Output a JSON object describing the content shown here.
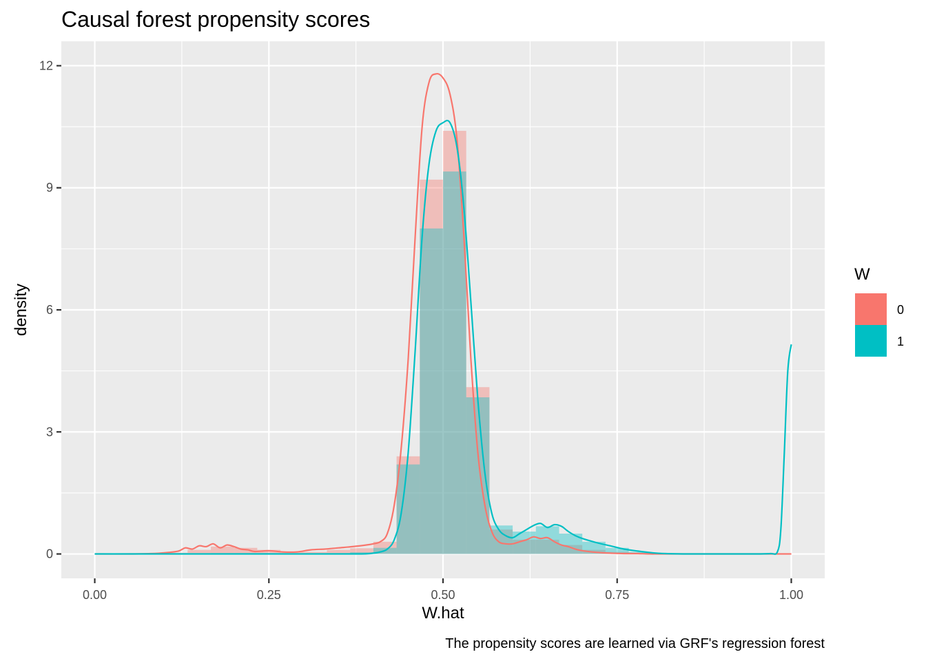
{
  "chart_data": {
    "type": "histogram+density",
    "title": "Causal forest propensity scores",
    "xlabel": "W.hat",
    "ylabel": "density",
    "caption": "The propensity scores are learned via GRF's regression forest",
    "xlim": [
      -0.048,
      1.048
    ],
    "ylim": [
      -0.6,
      12.6
    ],
    "x_ticks": [
      0,
      0.25,
      0.5,
      0.75,
      1
    ],
    "x_tick_labels": [
      "0.00",
      "0.25",
      "0.50",
      "0.75",
      "1.00"
    ],
    "y_ticks": [
      0,
      3,
      6,
      9,
      12
    ],
    "y_tick_labels": [
      "0",
      "3",
      "6",
      "9",
      "12"
    ],
    "grid": true,
    "legend": {
      "title": "W",
      "position": "right",
      "entries": [
        {
          "label": "0",
          "color": "#F8766D"
        },
        {
          "label": "1",
          "color": "#00BFC4"
        }
      ]
    },
    "histogram_bin_edges": [
      0.0,
      0.0333,
      0.0667,
      0.1,
      0.1333,
      0.1667,
      0.2,
      0.2333,
      0.2667,
      0.3,
      0.3333,
      0.3667,
      0.4,
      0.4333,
      0.4667,
      0.5,
      0.5333,
      0.5667,
      0.6,
      0.6333,
      0.6667,
      0.7,
      0.7333,
      0.7667,
      0.8,
      0.8333,
      0.8667,
      0.9,
      0.9333,
      0.9667,
      1.0
    ],
    "histogram_series": [
      {
        "name": "0",
        "color": "#F8766D",
        "values": [
          0,
          0,
          0,
          0.03,
          0.1,
          0.18,
          0.15,
          0.1,
          0.05,
          0.05,
          0.1,
          0.14,
          0.3,
          2.4,
          9.2,
          10.4,
          4.1,
          0.6,
          0.35,
          0.35,
          0.22,
          0.1,
          0.05,
          0.03,
          0.01,
          0,
          0,
          0,
          0,
          0
        ]
      },
      {
        "name": "1",
        "color": "#00BFC4",
        "values": [
          0,
          0,
          0,
          0,
          0,
          0.02,
          0.02,
          0.02,
          0.01,
          0.01,
          0.02,
          0.04,
          0.15,
          2.2,
          8.0,
          9.4,
          3.85,
          0.7,
          0.55,
          0.68,
          0.5,
          0.3,
          0.15,
          0.05,
          0,
          0,
          0,
          0,
          0,
          0
        ]
      }
    ],
    "density_series": [
      {
        "name": "0",
        "color": "#F8766D",
        "x": [
          0.0,
          0.05,
          0.08,
          0.1,
          0.12,
          0.13,
          0.14,
          0.15,
          0.16,
          0.17,
          0.18,
          0.19,
          0.2,
          0.21,
          0.22,
          0.23,
          0.25,
          0.27,
          0.29,
          0.31,
          0.33,
          0.35,
          0.37,
          0.39,
          0.4,
          0.41,
          0.42,
          0.43,
          0.44,
          0.45,
          0.46,
          0.47,
          0.48,
          0.49,
          0.5,
          0.51,
          0.52,
          0.53,
          0.54,
          0.55,
          0.56,
          0.57,
          0.58,
          0.59,
          0.6,
          0.61,
          0.62,
          0.63,
          0.64,
          0.65,
          0.66,
          0.67,
          0.68,
          0.69,
          0.7,
          0.72,
          0.74,
          0.76,
          0.78,
          0.8,
          0.85,
          0.9,
          1.0
        ],
        "y": [
          0,
          0,
          0.01,
          0.03,
          0.07,
          0.15,
          0.12,
          0.2,
          0.18,
          0.25,
          0.15,
          0.22,
          0.18,
          0.12,
          0.1,
          0.06,
          0.08,
          0.05,
          0.05,
          0.1,
          0.12,
          0.15,
          0.18,
          0.22,
          0.25,
          0.3,
          0.5,
          1.2,
          2.6,
          4.8,
          7.8,
          10.5,
          11.6,
          11.8,
          11.7,
          11.3,
          10.2,
          7.8,
          4.8,
          2.5,
          1.2,
          0.55,
          0.3,
          0.25,
          0.25,
          0.3,
          0.35,
          0.42,
          0.38,
          0.4,
          0.3,
          0.22,
          0.18,
          0.12,
          0.08,
          0.04,
          0.02,
          0.01,
          0.01,
          0,
          0,
          0,
          0
        ]
      },
      {
        "name": "1",
        "color": "#00BFC4",
        "x": [
          0.0,
          0.05,
          0.1,
          0.2,
          0.3,
          0.38,
          0.4,
          0.41,
          0.42,
          0.43,
          0.44,
          0.45,
          0.46,
          0.47,
          0.48,
          0.49,
          0.5,
          0.51,
          0.52,
          0.53,
          0.54,
          0.55,
          0.56,
          0.57,
          0.58,
          0.59,
          0.6,
          0.61,
          0.62,
          0.63,
          0.64,
          0.65,
          0.66,
          0.67,
          0.68,
          0.69,
          0.7,
          0.72,
          0.74,
          0.76,
          0.78,
          0.8,
          0.82,
          0.85,
          0.9,
          0.95,
          0.97,
          0.98,
          0.985,
          0.99,
          0.995,
          1.0
        ],
        "y": [
          0,
          0,
          0,
          0,
          0,
          0,
          0.02,
          0.05,
          0.12,
          0.35,
          1.0,
          2.5,
          5.0,
          7.8,
          9.6,
          10.4,
          10.6,
          10.6,
          10.0,
          8.5,
          6.2,
          3.8,
          2.0,
          1.0,
          0.6,
          0.45,
          0.4,
          0.5,
          0.6,
          0.7,
          0.75,
          0.65,
          0.72,
          0.68,
          0.55,
          0.45,
          0.38,
          0.28,
          0.2,
          0.12,
          0.07,
          0.03,
          0.01,
          0,
          0,
          0,
          0.01,
          0.05,
          0.6,
          2.5,
          4.5,
          5.15
        ]
      }
    ]
  }
}
